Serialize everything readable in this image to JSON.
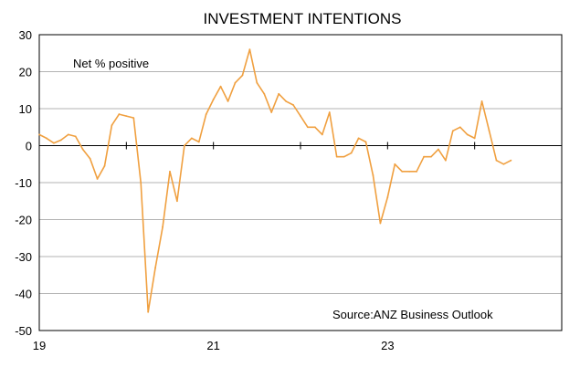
{
  "chart_data": {
    "type": "line",
    "title": "INVESTMENT INTENTIONS",
    "annotation_label": "Net % positive",
    "source_label": "Source:ANZ Business Outlook",
    "xlabel": "",
    "ylabel": "",
    "ylim": [
      -50,
      30
    ],
    "y_ticks": [
      30,
      20,
      10,
      0,
      -10,
      -20,
      -30,
      -40,
      -50
    ],
    "x_tick_labels": [
      {
        "label": "19",
        "index": 0
      },
      {
        "label": "21",
        "index": 24
      },
      {
        "label": "23",
        "index": 48
      }
    ],
    "grid": true,
    "line_color": "#F0A040",
    "series": [
      {
        "values": [
          3,
          2,
          0.7,
          1.5,
          3,
          2.5,
          -1,
          -3.5,
          -9,
          -5.5,
          5.5,
          8.5,
          8,
          7.5,
          -10,
          -45,
          -33,
          -22,
          -7,
          -15,
          0,
          2,
          1,
          8.5,
          12.5,
          16,
          12,
          17,
          19,
          26,
          17,
          14,
          9,
          14,
          12,
          11,
          8,
          5,
          5,
          3,
          9,
          -3,
          -3,
          -2,
          2,
          1,
          -8,
          -21,
          -14,
          -5,
          -7,
          -7,
          -7,
          -3,
          -3,
          -1,
          -4,
          4,
          5,
          3,
          2,
          12,
          4,
          -4,
          -5,
          -4
        ]
      }
    ]
  }
}
